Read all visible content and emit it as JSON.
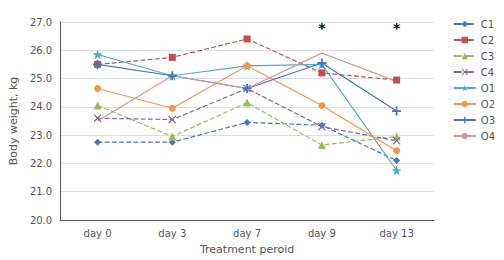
{
  "chart_data": {
    "type": "line",
    "categories": [
      "day 0",
      "day 3",
      "day 7",
      "day 9",
      "day 13"
    ],
    "series": [
      {
        "name": "C1",
        "color": "#4472C4",
        "line_style": "dashed",
        "marker": "diamond",
        "values": [
          22.75,
          22.75,
          23.45,
          23.35,
          22.1
        ]
      },
      {
        "name": "C2",
        "color": "#C0504D",
        "line_style": "dashed",
        "marker": "square",
        "values": [
          25.5,
          25.75,
          26.4,
          25.2,
          24.95
        ]
      },
      {
        "name": "C3",
        "color": "#9BBB59",
        "line_style": "dashed",
        "marker": "triangle",
        "values": [
          24.05,
          22.95,
          24.15,
          22.65,
          22.95
        ]
      },
      {
        "name": "C4",
        "color": "#8064A2",
        "line_style": "dashed",
        "marker": "x",
        "values": [
          23.6,
          23.55,
          24.65,
          23.3,
          22.8
        ]
      },
      {
        "name": "O1",
        "color": "#4BACC6",
        "line_style": "solid",
        "marker": "star",
        "values": [
          25.85,
          25.1,
          25.45,
          25.5,
          21.75
        ]
      },
      {
        "name": "O2",
        "color": "#F79646",
        "line_style": "solid",
        "marker": "circle",
        "values": [
          24.65,
          23.95,
          25.45,
          24.05,
          22.45
        ]
      },
      {
        "name": "O3",
        "color": "#4472C4",
        "line_style": "solid",
        "marker": "plus",
        "values": [
          25.5,
          25.1,
          24.65,
          25.55,
          23.85
        ]
      },
      {
        "name": "O4",
        "color": "#D99694",
        "line_style": "solid",
        "marker": "none",
        "values": [
          23.5,
          25.1,
          24.65,
          25.9,
          24.9
        ]
      }
    ],
    "xlabel": "Treatment peroid",
    "ylabel": "Body weight, kg",
    "ylim": [
      20.0,
      27.0
    ],
    "yticks": [
      {
        "value": 20,
        "label": "20.0"
      },
      {
        "value": 21,
        "label": "21.0"
      },
      {
        "value": 22,
        "label": "22.0"
      },
      {
        "value": 23,
        "label": "23.0"
      },
      {
        "value": 24,
        "label": "24.0"
      },
      {
        "value": 25,
        "label": "25.0"
      },
      {
        "value": 26,
        "label": "26.0"
      },
      {
        "value": 27,
        "label": "27.0"
      }
    ],
    "annotations": [
      {
        "x": "day 9",
        "y": 26.35,
        "text": "*"
      },
      {
        "x": "day 13",
        "y": 26.35,
        "text": "*"
      }
    ],
    "grid": true,
    "legend": "right"
  }
}
